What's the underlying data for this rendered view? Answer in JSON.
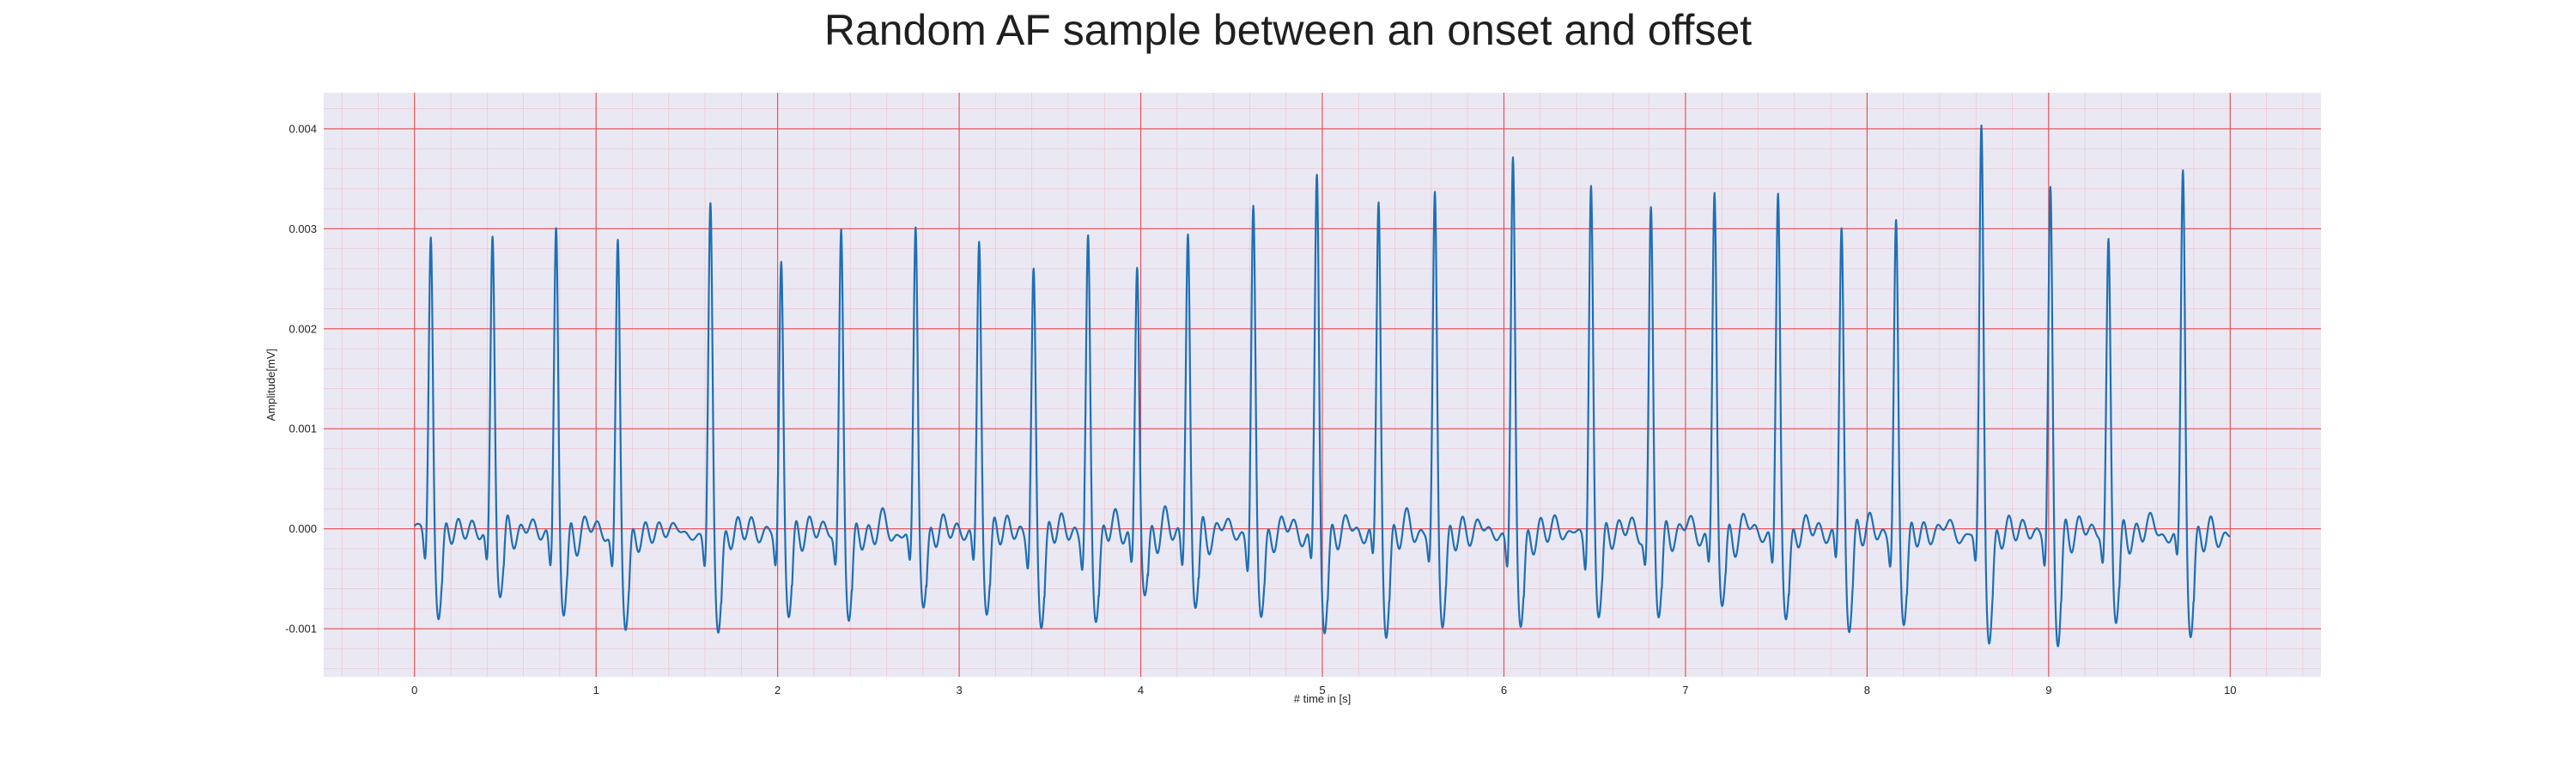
{
  "chart_data": {
    "type": "line",
    "title": "Random AF sample between an onset and offset",
    "xlabel": "# time in [s]",
    "ylabel": "Amplitude[mV]",
    "xlim": [
      -0.5,
      10.5
    ],
    "ylim": [
      -0.00148,
      0.00436
    ],
    "x_ticks": [
      0,
      1,
      2,
      3,
      4,
      5,
      6,
      7,
      8,
      9,
      10
    ],
    "x_tick_labels": [
      "0",
      "1",
      "2",
      "3",
      "4",
      "5",
      "6",
      "7",
      "8",
      "9",
      "10"
    ],
    "y_ticks": [
      -0.001,
      0.0,
      0.001,
      0.002,
      0.003,
      0.004
    ],
    "y_tick_labels": [
      "-0.001",
      "0.000",
      "0.001",
      "0.002",
      "0.003",
      "0.004"
    ],
    "grid": "major and minor",
    "series": [
      {
        "color": "#1f6fb4",
        "x_start": 0,
        "x_end": 10,
        "r_peaks": [
          {
            "t": 0.09,
            "amplitude": 0.00298,
            "trough": -0.00088
          },
          {
            "t": 0.43,
            "amplitude": 0.00298,
            "trough": -0.00065
          },
          {
            "t": 0.78,
            "amplitude": 0.00312,
            "trough": -0.00093
          },
          {
            "t": 1.12,
            "amplitude": 0.00294,
            "trough": -0.00106
          },
          {
            "t": 1.63,
            "amplitude": 0.00329,
            "trough": -0.00105
          },
          {
            "t": 2.02,
            "amplitude": 0.0028,
            "trough": -0.00091
          },
          {
            "t": 2.35,
            "amplitude": 0.0031,
            "trough": -0.00096
          },
          {
            "t": 2.76,
            "amplitude": 0.00305,
            "trough": -0.00078
          },
          {
            "t": 3.11,
            "amplitude": 0.00292,
            "trough": -0.0008
          },
          {
            "t": 3.41,
            "amplitude": 0.00263,
            "trough": -0.00093
          },
          {
            "t": 3.71,
            "amplitude": 0.00294,
            "trough": -0.00089
          },
          {
            "t": 3.98,
            "amplitude": 0.00267,
            "trough": -0.00073
          },
          {
            "t": 4.26,
            "amplitude": 0.00303,
            "trough": -0.0008
          },
          {
            "t": 4.62,
            "amplitude": 0.00327,
            "trough": -0.00093
          },
          {
            "t": 4.97,
            "amplitude": 0.00355,
            "trough": -0.001
          },
          {
            "t": 5.31,
            "amplitude": 0.00335,
            "trough": -0.00107
          },
          {
            "t": 5.62,
            "amplitude": 0.00344,
            "trough": -0.00097
          },
          {
            "t": 6.05,
            "amplitude": 0.00378,
            "trough": -0.00104
          },
          {
            "t": 6.48,
            "amplitude": 0.00352,
            "trough": -0.00092
          },
          {
            "t": 6.81,
            "amplitude": 0.00327,
            "trough": -0.0009
          },
          {
            "t": 7.16,
            "amplitude": 0.00341,
            "trough": -0.00081
          },
          {
            "t": 7.51,
            "amplitude": 0.00337,
            "trough": -0.0009
          },
          {
            "t": 7.86,
            "amplitude": 0.00306,
            "trough": -0.00097
          },
          {
            "t": 8.16,
            "amplitude": 0.0031,
            "trough": -0.0009
          },
          {
            "t": 8.63,
            "amplitude": 0.0041,
            "trough": -0.00115
          },
          {
            "t": 9.01,
            "amplitude": 0.00355,
            "trough": -0.00118
          },
          {
            "t": 9.33,
            "amplitude": 0.00303,
            "trough": -0.00097
          },
          {
            "t": 9.74,
            "amplitude": 0.00365,
            "trough": -0.00107
          }
        ]
      }
    ]
  },
  "colors": {
    "plot_background": "#eae9f3",
    "major_grid": "#e5484d",
    "minor_grid": "#f2a8b4",
    "line": "#1f6fb4"
  }
}
